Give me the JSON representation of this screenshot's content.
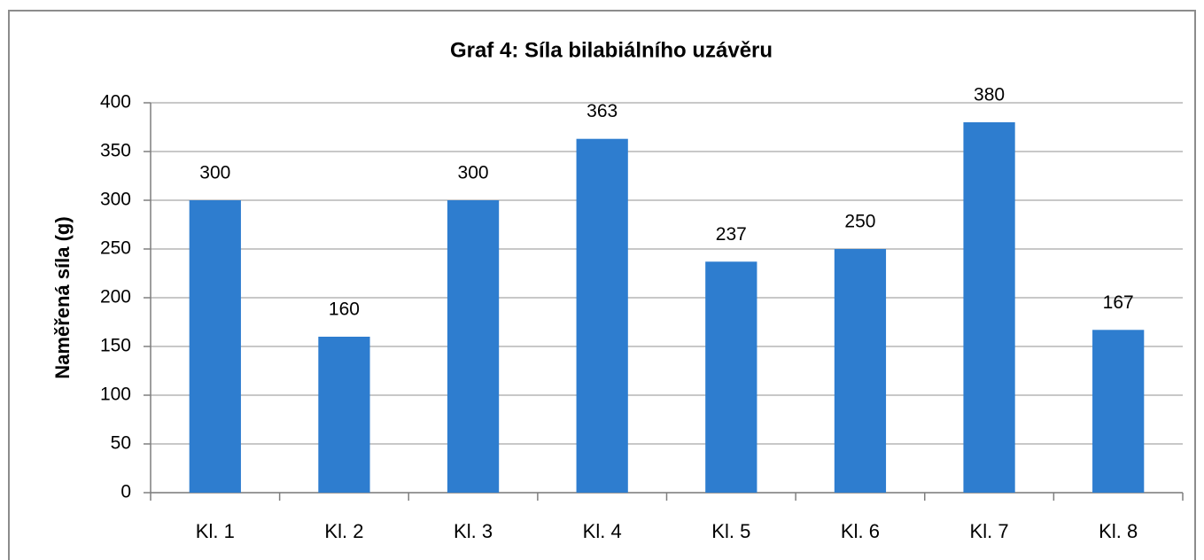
{
  "chart_data": {
    "type": "bar",
    "title": "Graf 4: Síla bilabiálního uzávěru",
    "y_label": "Naměřená síla (g)",
    "categories": [
      "Kl. 1",
      "Kl. 2",
      "Kl. 3",
      "Kl. 4",
      "Kl. 5",
      "Kl. 6",
      "Kl. 7",
      "Kl. 8"
    ],
    "values": [
      300,
      160,
      300,
      363,
      237,
      250,
      380,
      167
    ],
    "color": "#2e7dcf",
    "ylim": [
      0,
      400
    ],
    "yticks": [
      0,
      50,
      100,
      150,
      200,
      250,
      300,
      350,
      400
    ],
    "grid": true
  }
}
